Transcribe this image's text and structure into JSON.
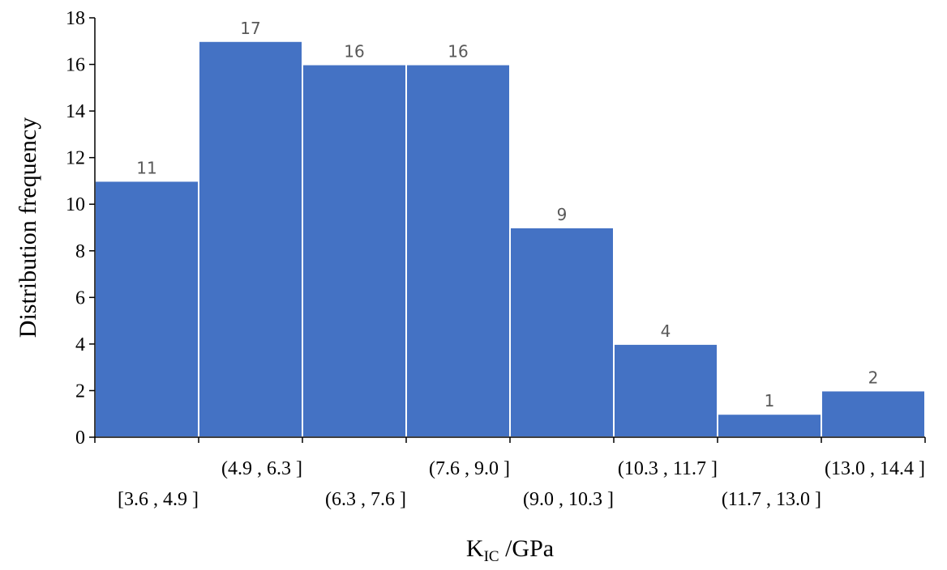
{
  "chart_data": {
    "type": "bar",
    "categories": [
      "[3.6 , 4.9 ]",
      "(4.9 , 6.3 ]",
      "(6.3 , 7.6 ]",
      "(7.6 , 9.0 ]",
      "(9.0 , 10.3 ]",
      "(10.3 , 11.7 ]",
      "(11.7 , 13.0 ]",
      "(13.0 , 14.4 ]"
    ],
    "values": [
      11,
      17,
      16,
      16,
      9,
      4,
      1,
      2
    ],
    "data_labels": [
      "11",
      "17",
      "16",
      "16",
      "9",
      "4",
      "1",
      "2"
    ],
    "ylim": [
      0,
      18
    ],
    "yticks": [
      "0",
      "2",
      "4",
      "6",
      "8",
      "10",
      "12",
      "14",
      "16",
      "18"
    ],
    "ylabel": "Distribution frequency",
    "xlabel_main": "K",
    "xlabel_sub": "IC",
    "xlabel_unit": " /GPa",
    "bar_color": "#4472c4",
    "grid": false,
    "legend": "none"
  }
}
